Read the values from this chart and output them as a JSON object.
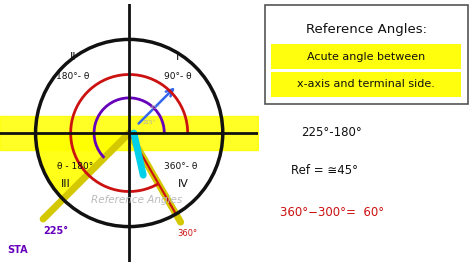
{
  "bg_left": "#ffffff",
  "bg_right": "#c8efc8",
  "circle_color": "#111111",
  "axis_color": "#111111",
  "yellow": "#ffff00",
  "cyan_color": "#00d0e8",
  "red_color": "#cc1111",
  "purple_color": "#6600bb",
  "blue_color": "#3366ee",
  "dark_yellow": "#d4c800",
  "title": "Reference Angles:",
  "def1": "Acute angle between",
  "def2": "x-axis and terminal side.",
  "f1": "225°-180°",
  "f2": "Ref = ≅45°",
  "f3": "360°−300°=  60°",
  "watermark": "Reference Angles",
  "label_225": "225°",
  "label_360": "360°",
  "label_sta": "STA"
}
